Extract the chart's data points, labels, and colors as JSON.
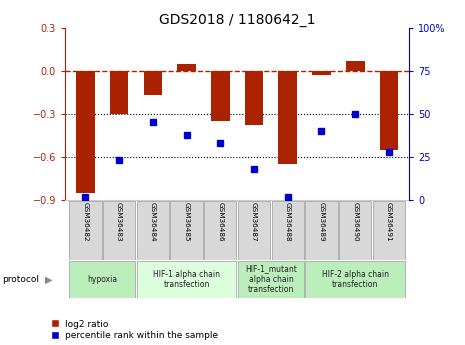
{
  "title": "GDS2018 / 1180642_1",
  "categories": [
    "GSM36482",
    "GSM36483",
    "GSM36484",
    "GSM36485",
    "GSM36486",
    "GSM36487",
    "GSM36488",
    "GSM36489",
    "GSM36490",
    "GSM36491"
  ],
  "log2_ratio": [
    -0.85,
    -0.3,
    -0.17,
    0.05,
    -0.35,
    -0.38,
    -0.65,
    -0.03,
    0.07,
    -0.55
  ],
  "percentile_rank": [
    2,
    23,
    45,
    38,
    33,
    18,
    2,
    40,
    50,
    28
  ],
  "bar_color": "#aa2200",
  "dot_color": "#0000cc",
  "left_ylim": [
    -0.9,
    0.3
  ],
  "right_ylim": [
    0,
    100
  ],
  "left_yticks": [
    -0.9,
    -0.6,
    -0.3,
    0.0,
    0.3
  ],
  "right_yticks": [
    0,
    25,
    50,
    75,
    100
  ],
  "dotted_lines": [
    -0.3,
    -0.6
  ],
  "protocol_groups": [
    {
      "label": "hypoxia",
      "start": 0,
      "end": 1,
      "color": "#bbeebb"
    },
    {
      "label": "HIF-1 alpha chain\ntransfection",
      "start": 2,
      "end": 4,
      "color": "#ddfedd"
    },
    {
      "label": "HIF-1_mutant\nalpha chain\ntransfection",
      "start": 5,
      "end": 6,
      "color": "#bbeebb"
    },
    {
      "label": "HIF-2 alpha chain\ntransfection",
      "start": 7,
      "end": 9,
      "color": "#bbeebb"
    }
  ],
  "legend_red_label": "log2 ratio",
  "legend_blue_label": "percentile rank within the sample",
  "protocol_label": "protocol",
  "bg_color": "#ffffff",
  "tick_label_size": 7,
  "bar_width": 0.55
}
